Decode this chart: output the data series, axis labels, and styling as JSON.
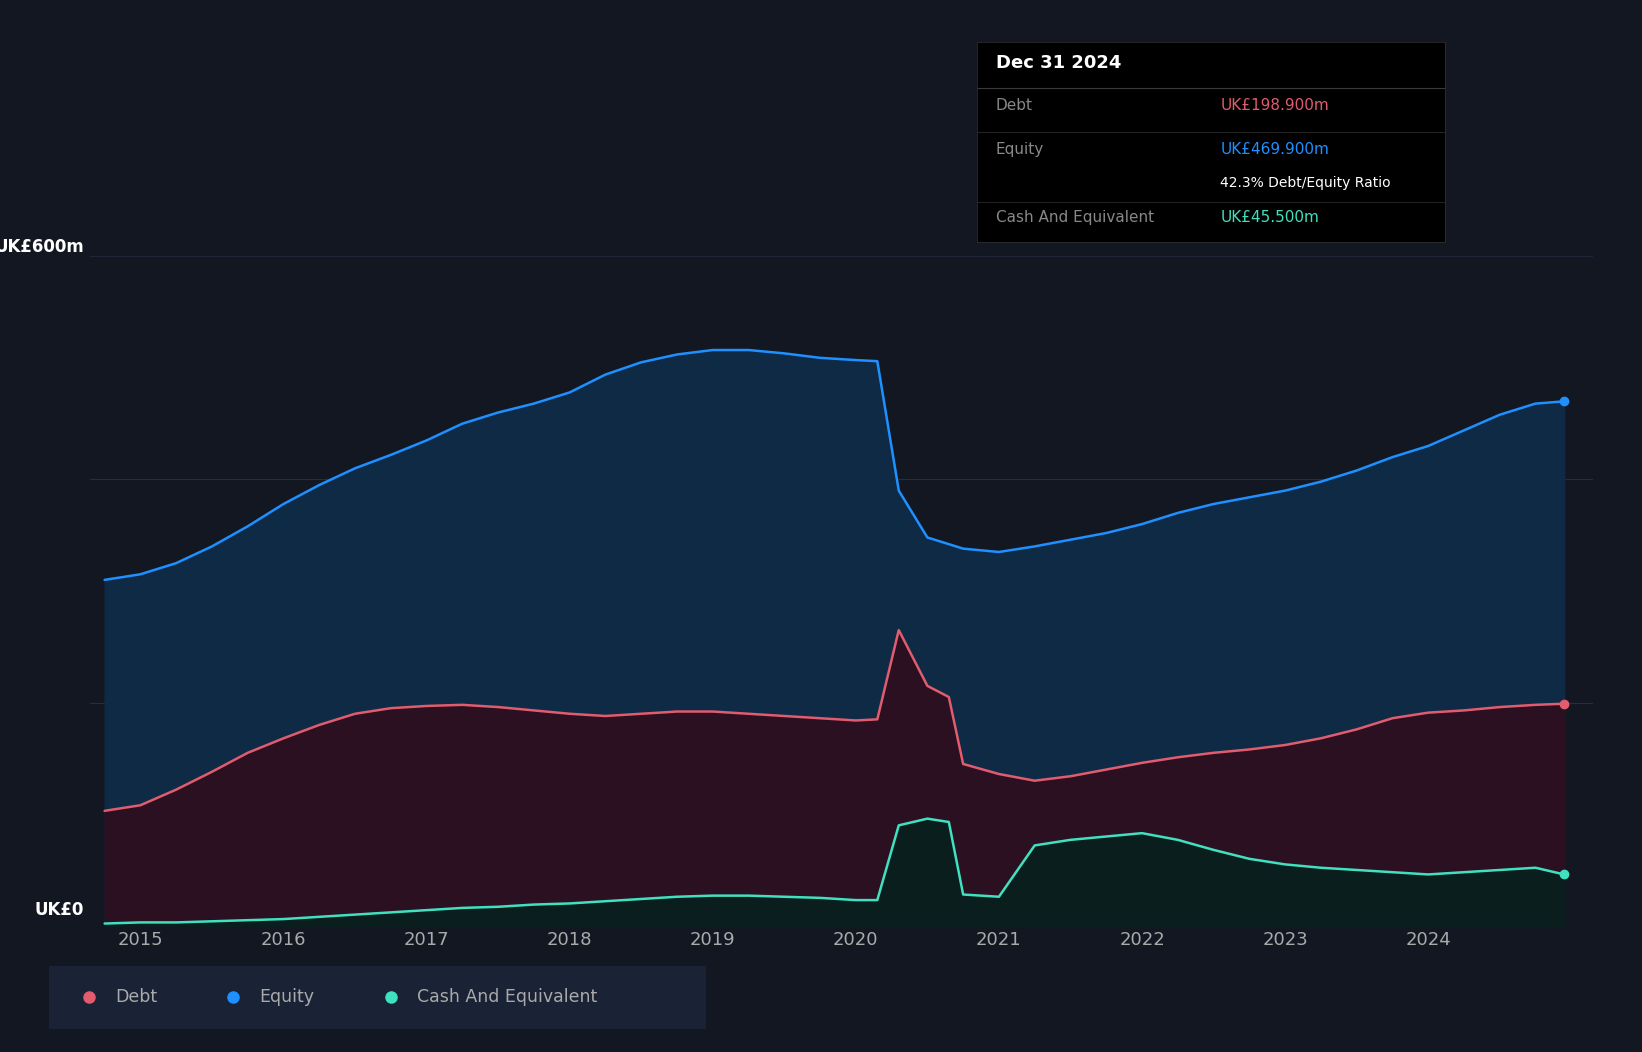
{
  "bg_color": "#131722",
  "equity_color": "#1e90ff",
  "equity_fill": "#0e2a45",
  "debt_color": "#e05c6e",
  "debt_fill": "#2a1020",
  "cash_color": "#40e0c0",
  "cash_fill": "#0a1e1e",
  "grid_color": "#2a3348",
  "text_color": "#aaaaaa",
  "tooltip_bg": "#000000",
  "tooltip_title": "Dec 31 2024",
  "tooltip_debt_label": "Debt",
  "tooltip_debt_value": "UK£198.900m",
  "tooltip_debt_color": "#e05c6e",
  "tooltip_equity_label": "Equity",
  "tooltip_equity_value": "UK£469.900m",
  "tooltip_equity_color": "#1e90ff",
  "tooltip_ratio": "42.3% Debt/Equity Ratio",
  "tooltip_cash_label": "Cash And Equivalent",
  "tooltip_cash_value": "UK£45.500m",
  "tooltip_cash_color": "#40e0c0",
  "ylim": [
    0,
    660
  ],
  "ylabel_600": "UK£600m",
  "ylabel_0": "UK£0",
  "xlim_left": 2014.65,
  "xlim_right": 2025.15,
  "dates": [
    2014.75,
    2015.0,
    2015.25,
    2015.5,
    2015.75,
    2016.0,
    2016.25,
    2016.5,
    2016.75,
    2017.0,
    2017.25,
    2017.5,
    2017.75,
    2018.0,
    2018.25,
    2018.5,
    2018.75,
    2019.0,
    2019.25,
    2019.5,
    2019.75,
    2020.0,
    2020.15,
    2020.3,
    2020.5,
    2020.65,
    2020.75,
    2021.0,
    2021.25,
    2021.5,
    2021.75,
    2022.0,
    2022.25,
    2022.5,
    2022.75,
    2023.0,
    2023.25,
    2023.5,
    2023.75,
    2024.0,
    2024.25,
    2024.5,
    2024.75,
    2024.95
  ],
  "equity": [
    310,
    315,
    325,
    340,
    358,
    378,
    395,
    410,
    422,
    435,
    450,
    460,
    468,
    478,
    494,
    505,
    512,
    516,
    516,
    513,
    509,
    507,
    506,
    390,
    348,
    342,
    338,
    335,
    340,
    346,
    352,
    360,
    370,
    378,
    384,
    390,
    398,
    408,
    420,
    430,
    444,
    458,
    468,
    470
  ],
  "debt": [
    103,
    108,
    122,
    138,
    155,
    168,
    180,
    190,
    195,
    197,
    198,
    196,
    193,
    190,
    188,
    190,
    192,
    192,
    190,
    188,
    186,
    184,
    185,
    265,
    215,
    205,
    145,
    136,
    130,
    134,
    140,
    146,
    151,
    155,
    158,
    162,
    168,
    176,
    186,
    191,
    193,
    196,
    198,
    199
  ],
  "cash": [
    2,
    3,
    3,
    4,
    5,
    6,
    8,
    10,
    12,
    14,
    16,
    17,
    19,
    20,
    22,
    24,
    26,
    27,
    27,
    26,
    25,
    23,
    23,
    90,
    96,
    93,
    28,
    26,
    72,
    77,
    80,
    83,
    77,
    68,
    60,
    55,
    52,
    50,
    48,
    46,
    48,
    50,
    52,
    46
  ],
  "xtick_positions": [
    2015,
    2016,
    2017,
    2018,
    2019,
    2020,
    2021,
    2022,
    2023,
    2024
  ],
  "xtick_labels": [
    "2015",
    "2016",
    "2017",
    "2018",
    "2019",
    "2020",
    "2021",
    "2022",
    "2023",
    "2024"
  ],
  "legend_items": [
    {
      "label": "Debt",
      "color": "#e05c6e"
    },
    {
      "label": "Equity",
      "color": "#1e90ff"
    },
    {
      "label": "Cash And Equivalent",
      "color": "#40e0c0"
    }
  ],
  "legend_bg": "#1a2235"
}
